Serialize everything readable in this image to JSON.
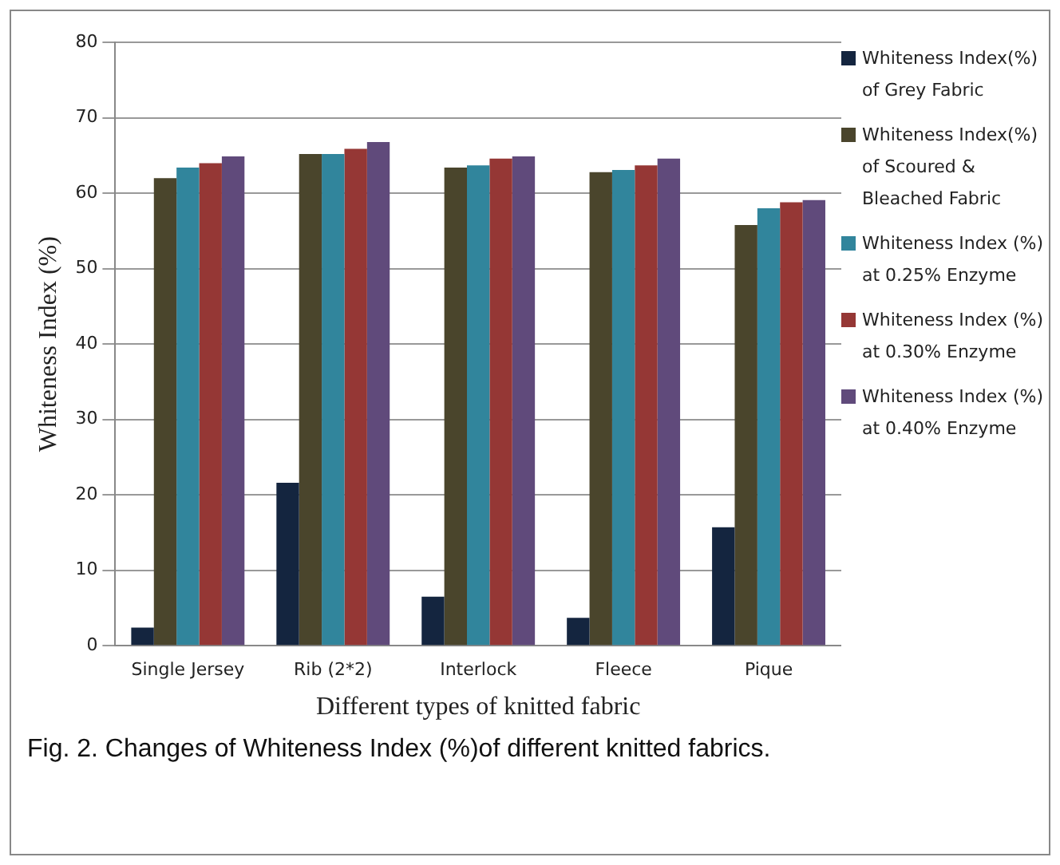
{
  "chart_data": {
    "type": "bar",
    "xlabel": "Different types of knitted fabric",
    "ylabel": "Whiteness Index (%)",
    "categories": [
      "Single Jersey",
      "Rib (2*2)",
      "Interlock",
      "Fleece",
      "Pique"
    ],
    "series": [
      {
        "name": "Whiteness Index(%) of Grey Fabric",
        "color": "#14253f",
        "values": [
          2.4,
          21.6,
          6.5,
          3.7,
          15.7
        ]
      },
      {
        "name": "Whiteness Index(%) of Scoured & Bleached Fabric",
        "color": "#4a452c",
        "values": [
          62.0,
          65.2,
          63.4,
          62.8,
          55.8
        ]
      },
      {
        "name": "Whiteness Index (%) at 0.25% Enzyme",
        "color": "#31859c",
        "values": [
          63.4,
          65.2,
          63.7,
          63.1,
          58.0
        ]
      },
      {
        "name": "Whiteness Index (%) at 0.30% Enzyme",
        "color": "#953735",
        "values": [
          64.0,
          65.9,
          64.6,
          63.7,
          58.8
        ]
      },
      {
        "name": "Whiteness Index (%) at 0.40% Enzyme",
        "color": "#604a7b",
        "values": [
          64.9,
          66.8,
          64.9,
          64.6,
          59.1
        ]
      }
    ],
    "ylim": [
      0,
      80
    ],
    "yticks": [
      0,
      10,
      20,
      30,
      40,
      50,
      60,
      70,
      80
    ],
    "grid": "y",
    "legend": "right",
    "annotations": [
      "Fig. 2. Changes of Whiteness Index (%)of different knitted fabrics."
    ]
  }
}
